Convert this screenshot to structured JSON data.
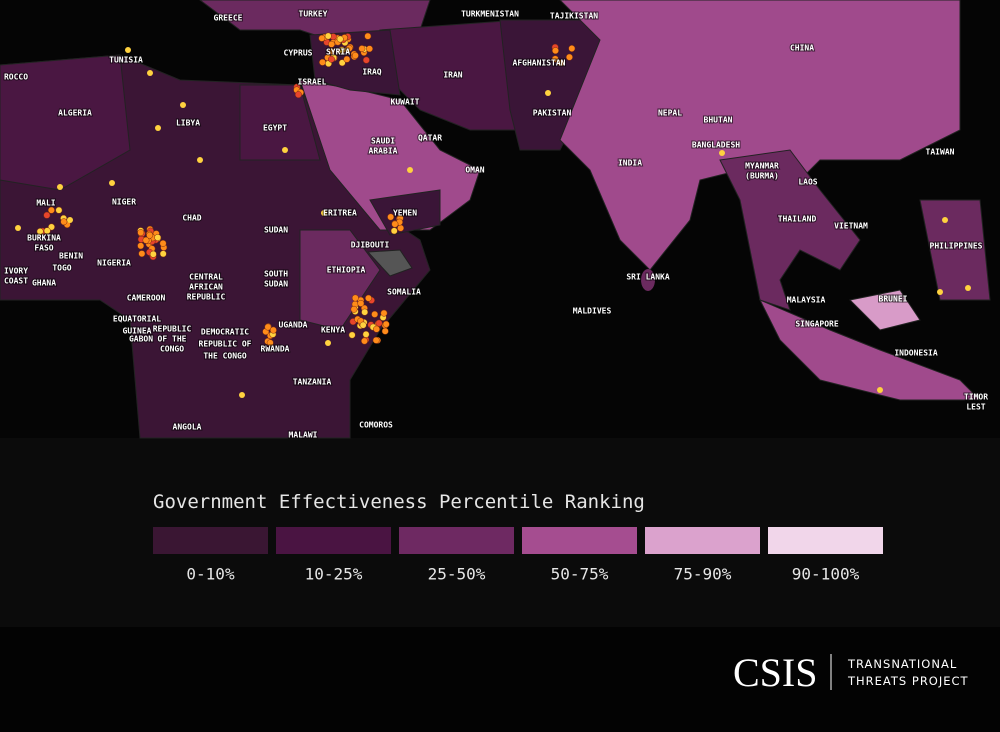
{
  "map": {
    "labels": [
      [
        "GREECE"
      ],
      [
        "TURKEY"
      ],
      [
        "TURKMENISTAN"
      ],
      [
        "TAJIKISTAN"
      ],
      [
        "CHINA"
      ],
      [
        "TUNISIA"
      ],
      [
        "SYRIA"
      ],
      [
        "IRAQ"
      ],
      [
        "CYPRUS"
      ],
      [
        "ISRAEL"
      ],
      [
        "KUWAIT"
      ],
      [
        "IRAN"
      ],
      [
        "AFGHANISTAN"
      ],
      [
        "ROCCO"
      ],
      [
        "ALGERIA"
      ],
      [
        "LIBYA"
      ],
      [
        "EGYPT"
      ],
      [
        "SAUDI",
        "ARABIA"
      ],
      [
        "QATAR"
      ],
      [
        "OMAN"
      ],
      [
        "PAKISTAN"
      ],
      [
        "NEPAL"
      ],
      [
        "BHUTAN"
      ],
      [
        "BANGLADESH"
      ],
      [
        "INDIA"
      ],
      [
        "MYANMAR",
        "(BURMA)"
      ],
      [
        "LAOS"
      ],
      [
        "TAIWAN"
      ],
      [
        "MALI"
      ],
      [
        "NIGER"
      ],
      [
        "CHAD"
      ],
      [
        "SUDAN"
      ],
      [
        "YEMEN"
      ],
      [
        "ERITREA"
      ],
      [
        "DJIBOUTI"
      ],
      [
        "BURKINA",
        "FASO"
      ],
      [
        "BENIN"
      ],
      [
        "NIGERIA"
      ],
      [
        "TOGO"
      ],
      [
        "IVORY",
        "COAST"
      ],
      [
        "GHANA"
      ],
      [
        "CENTRAL",
        "AFRICAN",
        "REPUBLIC"
      ],
      [
        "SOUTH",
        "SUDAN"
      ],
      [
        "ETHIOPIA"
      ],
      [
        "SOMALIA"
      ],
      [
        "CAMEROON"
      ],
      [
        "EQUATORIAL",
        "GUINEA"
      ],
      [
        "GABON"
      ],
      [
        "REPUBLIC",
        "OF THE",
        "CONGO"
      ],
      [
        "DEMOCRATIC",
        "REPUBLIC OF",
        "THE CONGO"
      ],
      [
        "UGANDA"
      ],
      [
        "RWANDA"
      ],
      [
        "KENYA"
      ],
      [
        "TANZANIA"
      ],
      [
        "ANGOLA"
      ],
      [
        "MALAWI"
      ],
      [
        "COMOROS"
      ],
      [
        "SRI LANKA"
      ],
      [
        "MALDIVES"
      ],
      [
        "THAILAND"
      ],
      [
        "VIETNAM"
      ],
      [
        "PHILIPPINES"
      ],
      [
        "MALAYSIA"
      ],
      [
        "SINGAPORE"
      ],
      [
        "BRUNEI"
      ],
      [
        "INDONESIA"
      ],
      [
        "TIMOR",
        "LEST"
      ]
    ]
  },
  "legend": {
    "title": "Government Effectiveness Percentile Ranking",
    "items": [
      {
        "label": "0-10%",
        "color": "#3a1633"
      },
      {
        "label": "10-25%",
        "color": "#4a1442"
      },
      {
        "label": "25-50%",
        "color": "#6e2962"
      },
      {
        "label": "50-75%",
        "color": "#a54d90"
      },
      {
        "label": "75-90%",
        "color": "#dba2cd"
      },
      {
        "label": "90-100%",
        "color": "#f1d6ea"
      }
    ]
  },
  "branding": {
    "logo": "CSIS",
    "project": [
      "TRANSNATIONAL",
      "THREATS PROJECT"
    ]
  }
}
